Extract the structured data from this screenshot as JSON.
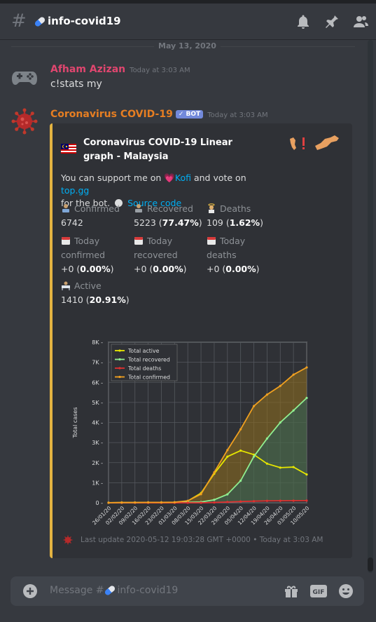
{
  "channel": {
    "title": "info-covid19"
  },
  "date_separator": "May 13, 2020",
  "messages": [
    {
      "author": "Afham Azizan",
      "timestamp": "Today at 3:03 AM",
      "text": "c!stats my"
    },
    {
      "author": "Coronavirus COVID-19",
      "bot_tag": "BOT",
      "timestamp": "Today at 3:03 AM"
    }
  ],
  "embed": {
    "title": "Coronavirus COVID-19 Linear graph - Malaysia",
    "desc_part1": "You can support me on ",
    "kofi": "Kofi",
    "desc_part2": " and vote on ",
    "topgg": "top.gg",
    "desc_part3": "for the bot.",
    "source": "Source code",
    "fields": {
      "confirmed": {
        "name": "Confirmed",
        "value": "6742"
      },
      "recovered": {
        "name": "Recovered",
        "value_pre": "5223 (",
        "value_bold": "77.47%",
        "value_post": ")"
      },
      "deaths": {
        "name": "Deaths",
        "value_pre": "109 (",
        "value_bold": "1.62%",
        "value_post": ")"
      },
      "today_confirmed": {
        "name1": "Today",
        "name2": "confirmed",
        "value_pre": "+0 (",
        "value_bold": "0.00%",
        "value_post": ")"
      },
      "today_recovered": {
        "name1": "Today",
        "name2": "recovered",
        "value_pre": "+0 (",
        "value_bold": "0.00%",
        "value_post": ")"
      },
      "today_deaths": {
        "name1": "Today",
        "name2": "deaths",
        "value_pre": "+0 (",
        "value_bold": "0.00%",
        "value_post": ")"
      },
      "active": {
        "name": "Active",
        "value_pre": "1410 (",
        "value_bold": "20.91%",
        "value_post": ")"
      }
    },
    "footer": "Last update 2020-05-12 19:03:28 GMT +0000 • Today at 3:03 AM"
  },
  "input": {
    "placeholder": "Message #",
    "channel": "info-covid19"
  },
  "colors": {
    "accent_embed": "#e3b341",
    "link": "#00aff4",
    "author1": "#e0466f",
    "author2": "#e67e22",
    "bot_tag": "#7289da"
  },
  "icons": [
    "bell-icon",
    "pin-icon",
    "members-icon",
    "gift-icon",
    "gif-icon",
    "emoji-icon",
    "plus-icon"
  ],
  "chart_data": {
    "type": "line",
    "ylabel": "Total cases",
    "xlabel": "",
    "ylim": [
      0,
      8000
    ],
    "yticks": [
      "0",
      "1K",
      "2K",
      "3K",
      "4K",
      "5K",
      "6K",
      "7K",
      "8K"
    ],
    "x": [
      "26/01/20",
      "02/02/20",
      "09/02/20",
      "16/02/20",
      "23/02/20",
      "01/03/20",
      "08/03/20",
      "15/03/20",
      "22/03/20",
      "29/03/20",
      "05/04/20",
      "12/04/20",
      "19/04/20",
      "26/04/20",
      "03/05/20",
      "10/05/20"
    ],
    "grid": true,
    "legend": "top-left",
    "series": [
      {
        "name": "Total active",
        "color": "#e6e600",
        "values": [
          4,
          12,
          14,
          7,
          3,
          7,
          90,
          480,
          1450,
          2300,
          2600,
          2400,
          1950,
          1750,
          1780,
          1410
        ]
      },
      {
        "name": "Total recovered",
        "color": "#90ee90",
        "values": [
          0,
          0,
          2,
          15,
          19,
          22,
          25,
          40,
          150,
          420,
          1100,
          2300,
          3200,
          4000,
          4600,
          5223
        ]
      },
      {
        "name": "Total deaths",
        "color": "#e03030",
        "values": [
          0,
          0,
          0,
          0,
          0,
          0,
          0,
          0,
          15,
          40,
          60,
          80,
          95,
          100,
          105,
          109
        ]
      },
      {
        "name": "Total confirmed",
        "color": "#f0a020",
        "values": [
          4,
          12,
          16,
          22,
          22,
          29,
          99,
          428,
          1518,
          2626,
          3662,
          4817,
          5389,
          5820,
          6383,
          6742
        ]
      }
    ]
  }
}
